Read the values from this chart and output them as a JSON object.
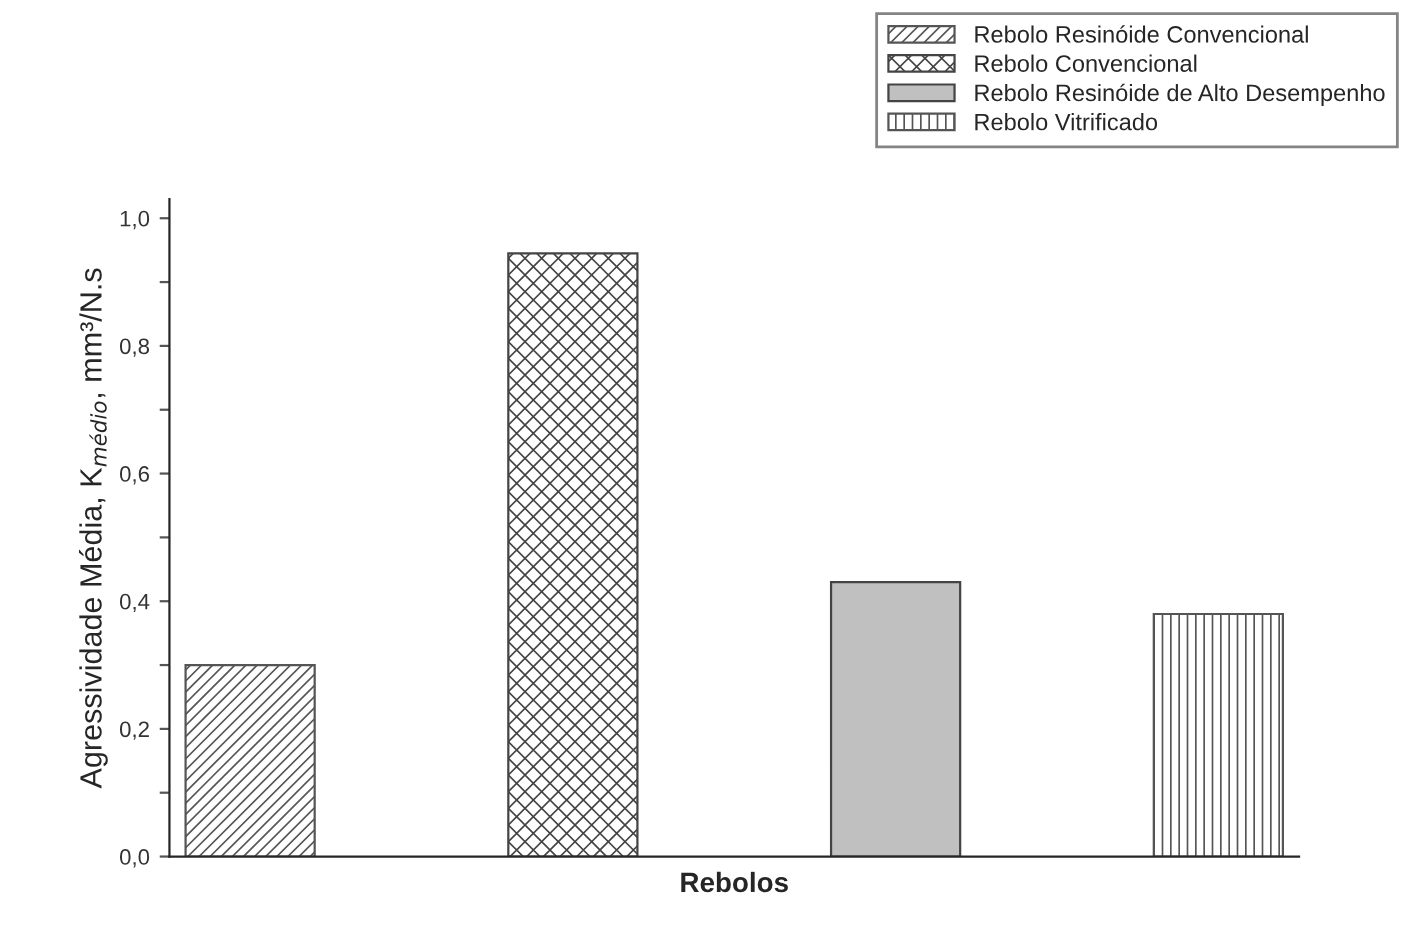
{
  "chart_data": {
    "type": "bar",
    "xlabel": "Rebolos",
    "ylabel": "Agressividade Média, K$_{médio}$, mm³/N.s",
    "categories": [
      null,
      null,
      null,
      null
    ],
    "series": [
      {
        "name": "Rebolo Resinóide Convencional",
        "color": "#555555",
        "values": [
          0.3,
          null,
          null,
          null
        ]
      },
      {
        "name": "Rebolo Convencional",
        "color": "#444444",
        "values": [
          null,
          0.945,
          null,
          null
        ]
      },
      {
        "name": "Rebolo Resinóide de Alto Desempenho",
        "color": "#c0c0c0",
        "values": [
          null,
          null,
          0.43,
          null
        ]
      },
      {
        "name": "Rebolo Vitrificado",
        "color": "#555555",
        "values": [
          null,
          null,
          null,
          0.38
        ]
      }
    ],
    "ylim": [
      0,
      1.03
    ],
    "yticks": [
      {
        "value": 0,
        "label": "0,0"
      },
      {
        "value": 0.1,
        "label": null
      },
      {
        "value": 0.2,
        "label": "0,2"
      },
      {
        "value": 0.3,
        "label": null
      },
      {
        "value": 0.4,
        "label": "0,4"
      },
      {
        "value": 0.5,
        "label": null
      },
      {
        "value": 0.6,
        "label": "0,6"
      },
      {
        "value": 0.7,
        "label": null
      },
      {
        "value": 0.8,
        "label": "0,8"
      },
      {
        "value": 0.9,
        "label": null
      },
      {
        "value": 1.0,
        "label": "1,0"
      }
    ],
    "legend": "top right",
    "grid": false
  }
}
